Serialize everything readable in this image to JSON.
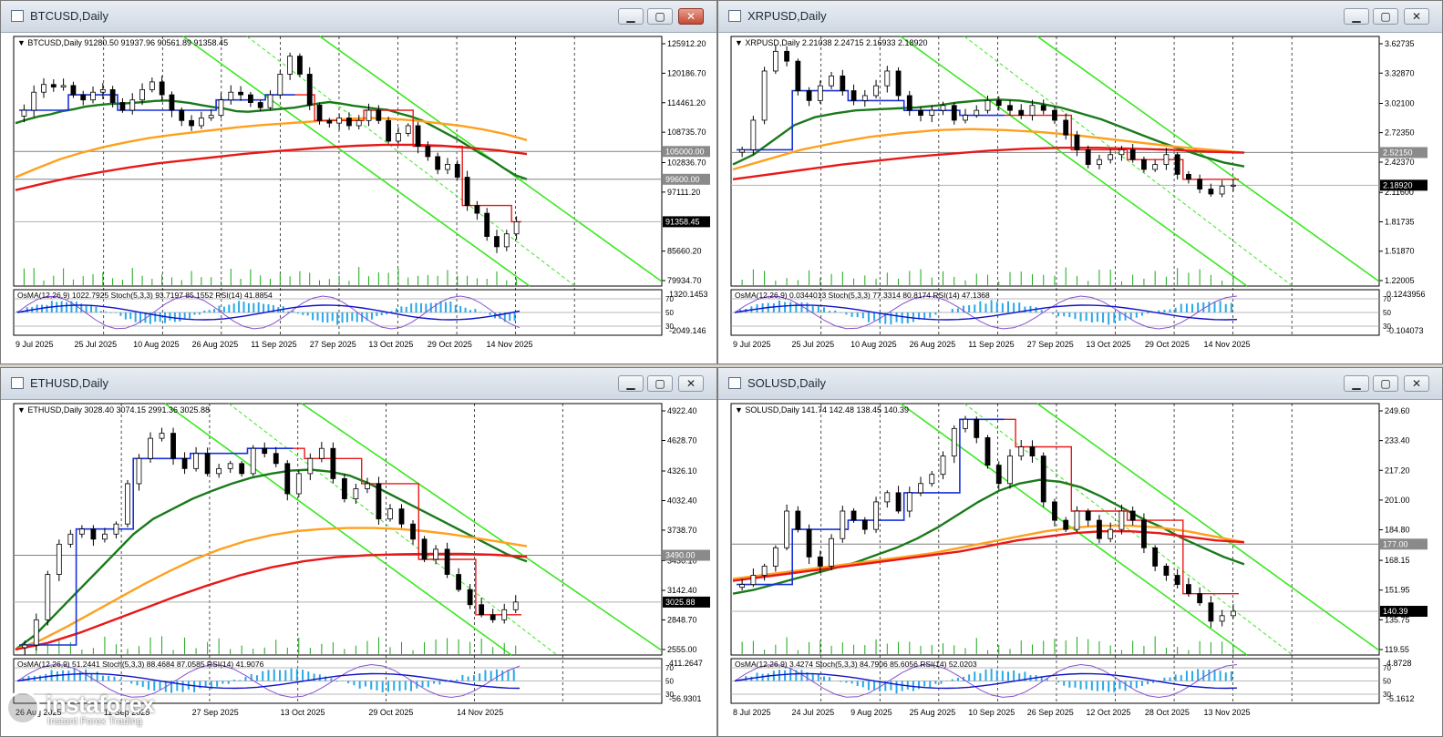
{
  "charts": [
    {
      "window_title": "BTCUSD,Daily",
      "chart_data": {
        "type": "candlestick",
        "symbol": "BTCUSD",
        "header": "BTCUSD,Daily  91280.50 91937.96 90561.89 91358.45",
        "price_ticks": [
          "125912.20",
          "120186.70",
          "114461.20",
          "108735.70",
          "102836.70",
          "97111.20",
          "85660.20",
          "79934.70"
        ],
        "price_range": [
          79934.7,
          125912.2
        ],
        "markers": [
          {
            "label": "105000.00",
            "value": 105000
          },
          {
            "label": "99600.00",
            "value": 99600
          },
          {
            "label": "91358.45",
            "value": 91358.45
          }
        ],
        "date_ticks": [
          "9 Jul 2025",
          "25 Jul 2025",
          "10 Aug 2025",
          "26 Aug 2025",
          "11 Sep 2025",
          "27 Sep 2025",
          "13 Oct 2025",
          "29 Oct 2025",
          "14 Nov 2025"
        ],
        "closes": [
          113000,
          116500,
          118000,
          117500,
          117800,
          116000,
          115000,
          116500,
          117000,
          114500,
          113000,
          115000,
          117000,
          118500,
          116000,
          113000,
          111000,
          110000,
          111500,
          112000,
          115000,
          116500,
          116000,
          114500,
          113500,
          116000,
          120000,
          123500,
          120000,
          114000,
          111000,
          110500,
          111500,
          110000,
          111000,
          113000,
          111000,
          107000,
          108500,
          110000,
          106000,
          104000,
          101500,
          102500,
          100000,
          94500,
          93000,
          88500,
          86500,
          89000,
          91358.45
        ],
        "indicators": [
          {
            "name": "MA green",
            "values": [
              110500,
              111200,
              111800,
              112200,
              112800,
              113200,
              113700,
              114000,
              114200,
              114300,
              114400,
              114600,
              114800,
              114900,
              114700,
              114400,
              114000,
              113600,
              113300,
              112800,
              112700,
              112900,
              113100,
              113300,
              113500,
              113900,
              114300,
              114600,
              114300,
              113900,
              113600,
              113300,
              113100,
              112400,
              111800,
              111000,
              109800,
              108600,
              107400,
              106000,
              104600,
              103300,
              101800,
              100400,
              99600
            ]
          },
          {
            "name": "MA orange",
            "values": [
              100000,
              101800,
              103500,
              104800,
              105900,
              106800,
              107600,
              108200,
              108700,
              109200,
              109700,
              110100,
              110400,
              110700,
              111000,
              111300,
              111500,
              111300,
              111000,
              110500,
              110000,
              109300,
              108400,
              107200
            ]
          },
          {
            "name": "MA red",
            "values": [
              97500,
              98800,
              100000,
              101000,
              101900,
              102700,
              103300,
              103900,
              104500,
              105000,
              105400,
              105800,
              106100,
              106300,
              106300,
              106100,
              105700,
              105200,
              104500
            ]
          }
        ],
        "oscillator": {
          "header": "OsMA(12,26,9) 1022.7925  Stoch(5,3,3) 93.7197 85.1552  RSI(14) 41.8854",
          "scale": {
            "top": "1320.1453",
            "bottom": "-2049.146"
          },
          "levels": [
            "70",
            "50",
            "30"
          ]
        }
      }
    },
    {
      "window_title": "XRPUSD,Daily",
      "chart_data": {
        "type": "candlestick",
        "symbol": "XRPUSD",
        "header": "XRPUSD,Daily  2.21038 2.24715 2.16933 2.18920",
        "price_ticks": [
          "3.62735",
          "3.32870",
          "3.02100",
          "2.72350",
          "2.42370",
          "2.11600",
          "1.81735",
          "1.51870",
          "1.22005"
        ],
        "price_range": [
          1.22005,
          3.62735
        ],
        "markers": [
          {
            "label": "2.52150",
            "value": 2.5215
          },
          {
            "label": "2.18920",
            "value": 2.1892
          }
        ],
        "date_ticks": [
          "9 Jul 2025",
          "25 Jul 2025",
          "10 Aug 2025",
          "26 Aug 2025",
          "11 Sep 2025",
          "27 Sep 2025",
          "13 Oct 2025",
          "29 Oct 2025",
          "14 Nov 2025"
        ],
        "closes": [
          2.55,
          2.85,
          3.35,
          3.55,
          3.45,
          3.15,
          3.05,
          3.2,
          3.3,
          3.15,
          3.05,
          3.1,
          3.2,
          3.35,
          3.1,
          2.95,
          2.9,
          2.95,
          3.0,
          2.85,
          2.9,
          2.95,
          3.05,
          3.0,
          2.95,
          2.9,
          3.0,
          2.95,
          2.85,
          2.7,
          2.55,
          2.4,
          2.45,
          2.5,
          2.55,
          2.45,
          2.35,
          2.4,
          2.5,
          2.3,
          2.25,
          2.15,
          2.1,
          2.18,
          2.19
        ],
        "indicators": [
          {
            "name": "MA green",
            "values": [
              2.4,
              2.5,
              2.65,
              2.8,
              2.88,
              2.92,
              2.95,
              2.96,
              2.97,
              2.98,
              3.0,
              3.03,
              3.05,
              3.06,
              3.05,
              3.02,
              2.98,
              2.92,
              2.86,
              2.78,
              2.7,
              2.62,
              2.55,
              2.48,
              2.42,
              2.38
            ]
          },
          {
            "name": "MA orange",
            "values": [
              2.35,
              2.45,
              2.55,
              2.62,
              2.68,
              2.72,
              2.75,
              2.76,
              2.75,
              2.73,
              2.7,
              2.66,
              2.62,
              2.58,
              2.55,
              2.52
            ]
          },
          {
            "name": "MA red",
            "values": [
              2.25,
              2.3,
              2.35,
              2.4,
              2.44,
              2.48,
              2.51,
              2.54,
              2.56,
              2.57,
              2.57,
              2.56,
              2.55,
              2.53,
              2.52
            ]
          }
        ],
        "oscillator": {
          "header": "OsMA(12,26,9) 0.0344013  Stoch(5,3,3) 77.3314 80.8174  RSI(14) 47.1368",
          "scale": {
            "top": "0.1243956",
            "bottom": "-0.104073"
          },
          "levels": [
            "70",
            "50",
            "30"
          ]
        }
      }
    },
    {
      "window_title": "ETHUSD,Daily",
      "chart_data": {
        "type": "candlestick",
        "symbol": "ETHUSD",
        "header": "ETHUSD,Daily  3028.40 3074.15 2991.36 3025.88",
        "price_ticks": [
          "4922.40",
          "4628.70",
          "4326.10",
          "4032.40",
          "3738.70",
          "3436.10",
          "3142.40",
          "2848.70",
          "2555.00"
        ],
        "price_range": [
          2555.0,
          4922.4
        ],
        "markers": [
          {
            "label": "3490.00",
            "value": 3490
          },
          {
            "label": "3025.88",
            "value": 3025.88
          }
        ],
        "date_ticks": [
          "26 Aug 2025",
          "11 Sep 2025",
          "27 Sep 2025",
          "13 Oct 2025",
          "29 Oct 2025",
          "14 Nov 2025"
        ],
        "closes": [
          2600,
          2850,
          3300,
          3600,
          3700,
          3750,
          3650,
          3700,
          3800,
          4200,
          4450,
          4650,
          4700,
          4450,
          4350,
          4500,
          4300,
          4350,
          4400,
          4300,
          4550,
          4500,
          4400,
          4100,
          4300,
          4450,
          4550,
          4250,
          4050,
          4150,
          4200,
          3850,
          3950,
          3800,
          3650,
          3450,
          3550,
          3300,
          3150,
          3000,
          2900,
          2850,
          2950,
          3025.88
        ],
        "indicators": [
          {
            "name": "MA green",
            "values": [
              2555,
              2700,
              2900,
              3100,
              3300,
              3500,
              3700,
              3850,
              3950,
              4050,
              4130,
              4200,
              4260,
              4300,
              4330,
              4340,
              4320,
              4280,
              4200,
              4100,
              4000,
              3900,
              3800,
              3700,
              3600,
              3500,
              3430
            ]
          },
          {
            "name": "MA orange",
            "values": [
              2555,
              2650,
              2780,
              2920,
              3060,
              3200,
              3330,
              3450,
              3550,
              3630,
              3690,
              3730,
              3750,
              3760,
              3760,
              3750,
              3730,
              3700,
              3660,
              3620,
              3580
            ]
          },
          {
            "name": "MA red",
            "values": [
              2555,
              2620,
              2720,
              2840,
              2960,
              3080,
              3190,
              3290,
              3370,
              3430,
              3470,
              3490,
              3500,
              3505,
              3505,
              3495,
              3475
            ]
          }
        ],
        "oscillator": {
          "header": "OsMA(12,26,9) 51.2441  Stoch(5,3,3) 88.4684 87.0585  RSI(14) 41.9076",
          "scale": {
            "top": "411.2647",
            "bottom": "-56.9301"
          },
          "levels": [
            "70",
            "50",
            "30"
          ]
        }
      }
    },
    {
      "window_title": "SOLUSD,Daily",
      "chart_data": {
        "type": "candlestick",
        "symbol": "SOLUSD",
        "header": "SOLUSD,Daily  141.74 142.48 138.45 140.39",
        "price_ticks": [
          "249.60",
          "233.40",
          "217.20",
          "201.00",
          "184.80",
          "168.15",
          "151.95",
          "135.75",
          "119.55"
        ],
        "price_range": [
          119.55,
          249.6
        ],
        "markers": [
          {
            "label": "177.00",
            "value": 177
          },
          {
            "label": "140.39",
            "value": 140.39
          }
        ],
        "date_ticks": [
          "8 Jul 2025",
          "24 Jul 2025",
          "9 Aug 2025",
          "25 Aug 2025",
          "10 Sep 2025",
          "26 Sep 2025",
          "12 Oct 2025",
          "28 Oct 2025",
          "13 Nov 2025"
        ],
        "closes": [
          155,
          160,
          165,
          175,
          195,
          185,
          170,
          165,
          180,
          195,
          190,
          185,
          200,
          205,
          195,
          205,
          210,
          215,
          225,
          240,
          245,
          235,
          220,
          210,
          225,
          230,
          225,
          200,
          190,
          185,
          195,
          190,
          180,
          185,
          195,
          190,
          175,
          165,
          160,
          155,
          150,
          145,
          135,
          138,
          140.39
        ],
        "indicators": [
          {
            "name": "MA green",
            "values": [
              150,
              152,
              155,
              158,
              161,
              164,
              167,
              171,
              175,
              180,
              186,
              193,
              200,
              206,
              210,
              212,
              211,
              208,
              203,
              197,
              191,
              186,
              180,
              175,
              170,
              166
            ]
          },
          {
            "name": "MA orange",
            "values": [
              158,
              160,
              162,
              164,
              166,
              168,
              170,
              172,
              175,
              178,
              181,
              184,
              186,
              187,
              187,
              186,
              184,
              181,
              178
            ]
          },
          {
            "name": "MA red",
            "values": [
              157,
              159,
              161,
              163,
              165,
              167,
              169,
              171,
              173,
              176,
              179,
              181,
              183,
              184,
              184,
              183,
              181,
              179,
              178
            ]
          }
        ],
        "oscillator": {
          "header": "OsMA(12,26,9) 3.4274  Stoch(5,3,3) 84.7906 85.6056  RSI(14) 52.0203",
          "scale": {
            "top": "4.8728",
            "bottom": "-5.1612"
          },
          "levels": [
            "70",
            "50",
            "30"
          ]
        }
      }
    }
  ],
  "watermark": {
    "brand": "instaforex",
    "tagline": "Instant Forex Trading"
  },
  "window_buttons": {
    "minimize": "▁",
    "maximize": "▢",
    "close": "✕"
  },
  "colors": {
    "ma_green": "#1a7a1a",
    "ma_orange": "#ffa01e",
    "ma_red": "#e81818",
    "trend_line": "#39e81f",
    "kijun_blue": "#1830d8",
    "volume": "#18a818",
    "osma": "#29a8e8",
    "stoch": "#1010c8",
    "rsi": "#8a4fd1"
  }
}
